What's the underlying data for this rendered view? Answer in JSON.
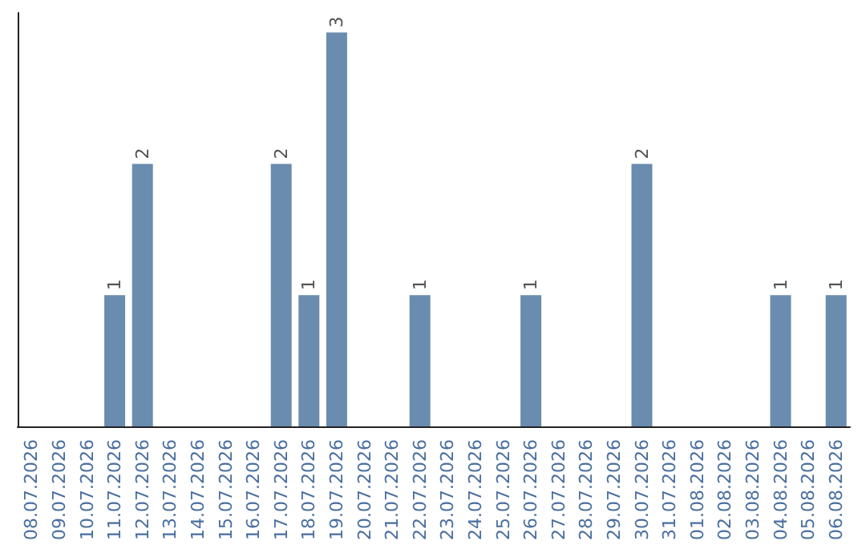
{
  "chart_data": {
    "type": "bar",
    "categories": [
      "08.07.2026",
      "09.07.2026",
      "10.07.2026",
      "11.07.2026",
      "12.07.2026",
      "13.07.2026",
      "14.07.2026",
      "15.07.2026",
      "16.07.2026",
      "17.07.2026",
      "18.07.2026",
      "19.07.2026",
      "20.07.2026",
      "21.07.2026",
      "22.07.2026",
      "23.07.2026",
      "24.07.2026",
      "25.07.2026",
      "26.07.2026",
      "27.07.2026",
      "28.07.2026",
      "29.07.2026",
      "30.07.2026",
      "31.07.2026",
      "01.08.2026",
      "02.08.2026",
      "03.08.2026",
      "04.08.2026",
      "05.08.2026",
      "06.08.2026"
    ],
    "values": [
      0,
      0,
      0,
      1,
      2,
      0,
      0,
      0,
      0,
      2,
      1,
      3,
      0,
      0,
      1,
      0,
      0,
      0,
      1,
      0,
      0,
      0,
      2,
      0,
      0,
      0,
      0,
      1,
      0,
      1
    ],
    "value_labels": [
      null,
      null,
      null,
      "1",
      "2",
      null,
      null,
      null,
      null,
      "2",
      "1",
      "3",
      null,
      null,
      "1",
      null,
      null,
      null,
      "1",
      null,
      null,
      null,
      "2",
      null,
      null,
      null,
      null,
      "1",
      null,
      "1"
    ],
    "color": "#6a8cae",
    "grid": false,
    "tick_labels": "x"
  }
}
